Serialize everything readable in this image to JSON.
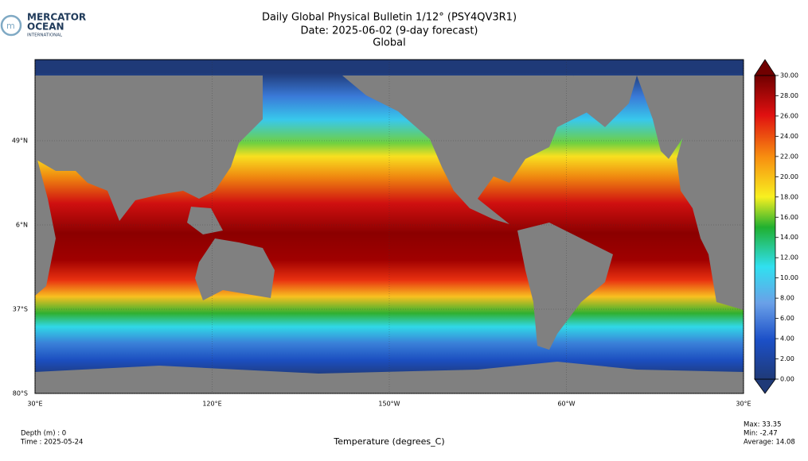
{
  "logo": {
    "line1": "MERCATOR",
    "line2": "OCEAN",
    "line3": "INTERNATIONAL"
  },
  "title": [
    "Daily Global Physical Bulletin 1/12° (PSY4QV3R1)",
    "Date: 2025-06-02 (9-day forecast)",
    "Global"
  ],
  "map": {
    "lat_ticks": [
      {
        "value": 49,
        "label": "49°N"
      },
      {
        "value": 6,
        "label": "6°N"
      },
      {
        "value": -37,
        "label": "37°S"
      },
      {
        "value": -80,
        "label": "80°S"
      }
    ],
    "lon_ticks": [
      {
        "value": 30,
        "label": "30°E"
      },
      {
        "value": 120,
        "label": "120°E"
      },
      {
        "value": 210,
        "label": "150°W"
      },
      {
        "value": 300,
        "label": "60°W"
      },
      {
        "value": 390,
        "label": "30°E"
      }
    ]
  },
  "colorbar": {
    "label": "Temperature (degrees_C)",
    "ticks": [
      {
        "value": 0,
        "label": "0.00"
      },
      {
        "value": 2,
        "label": "2.00"
      },
      {
        "value": 4,
        "label": "4.00"
      },
      {
        "value": 6,
        "label": "6.00"
      },
      {
        "value": 8,
        "label": "8.00"
      },
      {
        "value": 10,
        "label": "10.00"
      },
      {
        "value": 12,
        "label": "12.00"
      },
      {
        "value": 14,
        "label": "14.00"
      },
      {
        "value": 16,
        "label": "16.00"
      },
      {
        "value": 18,
        "label": "18.00"
      },
      {
        "value": 20,
        "label": "20.00"
      },
      {
        "value": 22,
        "label": "22.00"
      },
      {
        "value": 24,
        "label": "24.00"
      },
      {
        "value": 26,
        "label": "26.00"
      },
      {
        "value": 28,
        "label": "28.00"
      },
      {
        "value": 30,
        "label": "30.00"
      }
    ]
  },
  "footer": {
    "depth": "Depth (m) : 0",
    "time": "Time : 2025-05-24"
  },
  "stats": [
    "Max: 33.35",
    "Min: -2.47",
    "Average: 14.08"
  ]
}
